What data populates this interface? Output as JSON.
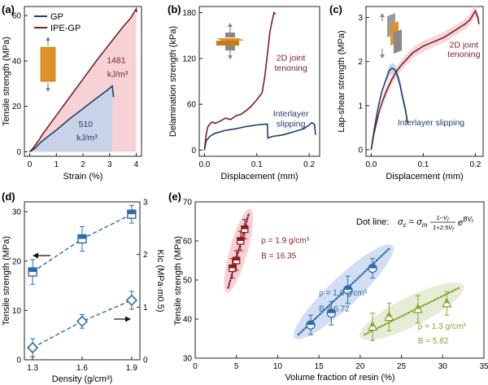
{
  "colors": {
    "gp": "#1f3d6e",
    "ipe": "#7a1f26",
    "gp_fill": "#c9d3e8",
    "ipe_fill": "#f6d2d6",
    "blue_mark": "#2e6aa8",
    "blue_ellipse": "#cad8f1",
    "red_mark": "#8b1a1e",
    "red_ellipse": "#f3c8cf",
    "green_mark": "#8aa32f",
    "green_ellipse": "#e1ead0",
    "axis": "#222222",
    "specimen": "#e0922a"
  },
  "chart_data": [
    {
      "panel": "(a)",
      "type": "line",
      "xlabel": "Strain (%)",
      "ylabel": "Tensile strength (MPa)",
      "xlim": [
        -0.2,
        4.2
      ],
      "ylim": [
        -2,
        64
      ],
      "xticks": [
        0,
        1,
        2,
        3,
        4
      ],
      "yticks": [
        0,
        20,
        40,
        60
      ],
      "legend": [
        "GP",
        "IPE-GP"
      ],
      "legend_position": "top-left",
      "series": [
        {
          "name": "GP",
          "points": [
            [
              0,
              0
            ],
            [
              0.1,
              0.7
            ],
            [
              0.2,
              1.6
            ],
            [
              0.3,
              2.8
            ],
            [
              0.4,
              4
            ],
            [
              0.5,
              5
            ],
            [
              0.75,
              7.3
            ],
            [
              1,
              9.6
            ],
            [
              1.5,
              14.5
            ],
            [
              2,
              19
            ],
            [
              2.5,
              23.5
            ],
            [
              2.9,
              27
            ],
            [
              3.05,
              28.5
            ],
            [
              3.1,
              29
            ],
            [
              3.12,
              27
            ],
            [
              3.15,
              24
            ]
          ]
        },
        {
          "name": "IPE-GP",
          "points": [
            [
              0,
              0
            ],
            [
              0.1,
              1.2
            ],
            [
              0.2,
              2.8
            ],
            [
              0.35,
              5.2
            ],
            [
              0.5,
              8
            ],
            [
              1,
              16
            ],
            [
              1.5,
              24
            ],
            [
              2,
              32
            ],
            [
              2.5,
              40
            ],
            [
              3,
              47.5
            ],
            [
              3.5,
              55
            ],
            [
              3.8,
              59
            ],
            [
              3.95,
              62
            ],
            [
              4,
              63
            ],
            [
              4.02,
              61.5
            ]
          ]
        }
      ],
      "annotations": [
        {
          "text": "1481",
          "x": 3.25,
          "y": 39
        },
        {
          "text": "kJ/m³",
          "x": 3.3,
          "y": 33
        },
        {
          "text": "510",
          "x": 2.1,
          "y": 11
        },
        {
          "text": "kJ/m³",
          "x": 2.15,
          "y": 5
        }
      ]
    },
    {
      "panel": "(b)",
      "type": "line",
      "xlabel": "Displacement (mm)",
      "ylabel": "Delamination strength (kPa)",
      "xlim": [
        -0.01,
        0.22
      ],
      "ylim": [
        -8,
        188
      ],
      "xticks": [
        0.0,
        0.1,
        0.2
      ],
      "xtick_labels": [
        "0.0",
        "0.1",
        "0.2"
      ],
      "yticks": [
        0,
        60,
        120,
        180
      ],
      "series": [
        {
          "name": "2D joint tenoning",
          "points": [
            [
              0,
              0
            ],
            [
              0.003,
              20
            ],
            [
              0.006,
              30
            ],
            [
              0.01,
              34
            ],
            [
              0.015,
              37
            ],
            [
              0.02,
              35
            ],
            [
              0.03,
              38
            ],
            [
              0.04,
              42
            ],
            [
              0.05,
              40
            ],
            [
              0.06,
              45
            ],
            [
              0.07,
              47
            ],
            [
              0.08,
              52
            ],
            [
              0.09,
              58
            ],
            [
              0.1,
              66
            ],
            [
              0.11,
              75
            ],
            [
              0.115,
              95
            ],
            [
              0.12,
              125
            ],
            [
              0.125,
              155
            ],
            [
              0.13,
              172
            ],
            [
              0.133,
              180
            ],
            [
              0.136,
              178
            ]
          ]
        },
        {
          "name": "Interlayer slipping",
          "points": [
            [
              0,
              0
            ],
            [
              0.003,
              12
            ],
            [
              0.01,
              18
            ],
            [
              0.02,
              22
            ],
            [
              0.04,
              26
            ],
            [
              0.06,
              28
            ],
            [
              0.08,
              31
            ],
            [
              0.1,
              33
            ],
            [
              0.115,
              34
            ],
            [
              0.12,
              34
            ],
            [
              0.121,
              16
            ],
            [
              0.13,
              18
            ],
            [
              0.15,
              20
            ],
            [
              0.17,
              24
            ],
            [
              0.19,
              28
            ],
            [
              0.2,
              33
            ],
            [
              0.205,
              36
            ],
            [
              0.21,
              34
            ],
            [
              0.212,
              20
            ]
          ]
        }
      ],
      "annotations": [
        {
          "text": "2D joint",
          "x": 0.165,
          "y": 117
        },
        {
          "text": "tenoning",
          "x": 0.165,
          "y": 104
        },
        {
          "text": "Interlayer",
          "x": 0.165,
          "y": 44
        },
        {
          "text": "slipping",
          "x": 0.165,
          "y": 31
        }
      ]
    },
    {
      "panel": "(c)",
      "type": "line",
      "xlabel": "Displacement (mm)",
      "ylabel": "Lap-shear strength (MPa)",
      "xlim": [
        -0.01,
        0.215
      ],
      "ylim": [
        -0.15,
        3.25
      ],
      "xticks": [
        0.0,
        0.1,
        0.2
      ],
      "xtick_labels": [
        "0.0",
        "0.1",
        "0.2"
      ],
      "yticks": [
        0,
        1,
        2,
        3
      ],
      "series": [
        {
          "name": "2D joint tenoning",
          "points": [
            [
              0,
              0
            ],
            [
              0.005,
              0.35
            ],
            [
              0.01,
              0.6
            ],
            [
              0.015,
              0.85
            ],
            [
              0.02,
              1.05
            ],
            [
              0.03,
              1.35
            ],
            [
              0.04,
              1.6
            ],
            [
              0.05,
              1.8
            ],
            [
              0.06,
              1.95
            ],
            [
              0.08,
              2.2
            ],
            [
              0.1,
              2.35
            ],
            [
              0.12,
              2.45
            ],
            [
              0.14,
              2.55
            ],
            [
              0.16,
              2.7
            ],
            [
              0.18,
              2.85
            ],
            [
              0.19,
              2.95
            ],
            [
              0.2,
              3.15
            ],
            [
              0.205,
              3.0
            ],
            [
              0.207,
              2.85
            ]
          ]
        },
        {
          "name": "Interlayer slipping",
          "points": [
            [
              0,
              0
            ],
            [
              0.005,
              0.4
            ],
            [
              0.01,
              0.75
            ],
            [
              0.015,
              1.05
            ],
            [
              0.02,
              1.3
            ],
            [
              0.03,
              1.65
            ],
            [
              0.035,
              1.8
            ],
            [
              0.04,
              1.85
            ],
            [
              0.045,
              1.82
            ],
            [
              0.05,
              1.7
            ],
            [
              0.055,
              1.5
            ],
            [
              0.06,
              1.2
            ],
            [
              0.065,
              0.95
            ],
            [
              0.068,
              0.75
            ],
            [
              0.07,
              0.6
            ]
          ]
        }
      ],
      "annotations": [
        {
          "text": "2D joint",
          "x": 0.178,
          "y": 2.32
        },
        {
          "text": "tenoning",
          "x": 0.178,
          "y": 2.1
        },
        {
          "text": "Interlayer slipping",
          "x": 0.115,
          "y": 0.55
        }
      ]
    },
    {
      "panel": "(d)",
      "type": "scatter",
      "xlabel": "Density (g/cm³)",
      "ylabel": "Tensile strength (MPa)",
      "ylabel_right": "KIc (MPa·m0.5)",
      "categories": [
        "1.3",
        "1.6",
        "1.9"
      ],
      "x": [
        1.3,
        1.6,
        1.9
      ],
      "xlim": [
        1.25,
        1.95
      ],
      "ylim": [
        0,
        32
      ],
      "ylim_right": [
        0,
        3
      ],
      "yticks": [
        0,
        10,
        20,
        30
      ],
      "yticks_right": [
        0,
        1,
        2,
        3
      ],
      "series": [
        {
          "name": "Tensile strength",
          "axis": "left",
          "marker": "square",
          "values": [
            17.8,
            24.5,
            29.5
          ],
          "errors": [
            2.5,
            2.5,
            1.8
          ]
        },
        {
          "name": "KIc",
          "axis": "right",
          "marker": "diamond",
          "values": [
            0.23,
            0.73,
            1.13
          ],
          "errors": [
            0.17,
            0.13,
            0.17
          ]
        }
      ]
    },
    {
      "panel": "(e)",
      "type": "scatter",
      "xlabel": "Volume fraction of resin (%)",
      "ylabel": "Tensile strength (MPa)",
      "xlim": [
        0,
        35
      ],
      "ylim": [
        30,
        70
      ],
      "xticks": [
        0,
        5,
        10,
        15,
        20,
        25,
        30,
        35
      ],
      "yticks": [
        30,
        40,
        50,
        60,
        70
      ],
      "equation_prefix": "Dot line:",
      "series": [
        {
          "name": "ρ = 1.9 g/cm³",
          "label_b": "B = 16.35",
          "points": [
            [
              4.5,
              53
            ],
            [
              5,
              55
            ],
            [
              5.5,
              60
            ],
            [
              6,
              63
            ]
          ],
          "errors": [
            2.5,
            2.5,
            2.5,
            2.5
          ],
          "fit": [
            [
              4,
              48
            ],
            [
              6.5,
              67
            ]
          ]
        },
        {
          "name": "ρ = 1.6 g/cm³",
          "label_b": "B = 6.72",
          "points": [
            [
              14,
              38.5
            ],
            [
              16.5,
              41.5
            ],
            [
              18.5,
              47.5
            ],
            [
              21.5,
              53
            ]
          ],
          "errors": [
            2.5,
            3,
            3.5,
            2.5
          ],
          "fit": [
            [
              12.5,
              36
            ],
            [
              23.5,
              58
            ]
          ]
        },
        {
          "name": "ρ = 1.3 g/cm³",
          "label_b": "B = 5.82",
          "points": [
            [
              21.5,
              38
            ],
            [
              23.5,
              40.5
            ],
            [
              27,
              42.5
            ],
            [
              30.5,
              44
            ]
          ],
          "errors": [
            3.5,
            3.5,
            3.5,
            3
          ],
          "fit": [
            [
              20.5,
              36
            ],
            [
              32,
              48
            ]
          ]
        }
      ]
    }
  ]
}
